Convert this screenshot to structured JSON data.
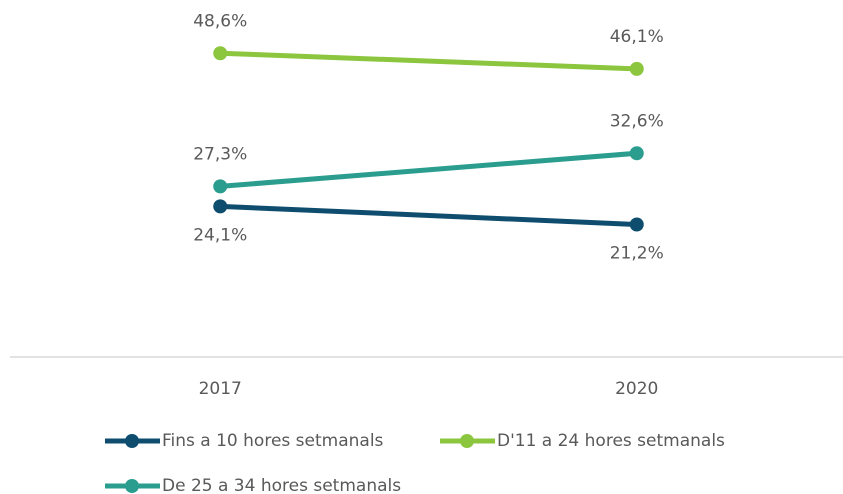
{
  "chart_data": {
    "type": "line",
    "categories": [
      "2017",
      "2020"
    ],
    "ylim": [
      0,
      56
    ],
    "series": [
      {
        "name": "Fins a 10 hores setmanals",
        "color": "#0e4d6e",
        "values": [
          24.1,
          21.2
        ],
        "value_labels": [
          "24,1%",
          "21,2%"
        ]
      },
      {
        "name": "D'11 a 24 hores setmanals",
        "color": "#8cc63f",
        "values": [
          48.6,
          46.1
        ],
        "value_labels": [
          "48,6%",
          "46,1%"
        ]
      },
      {
        "name": "De 25 a 34 hores setmanals",
        "color": "#2a9d8f",
        "values": [
          27.3,
          32.6
        ],
        "value_labels": [
          "27,3%",
          "32,6%"
        ]
      }
    ]
  }
}
